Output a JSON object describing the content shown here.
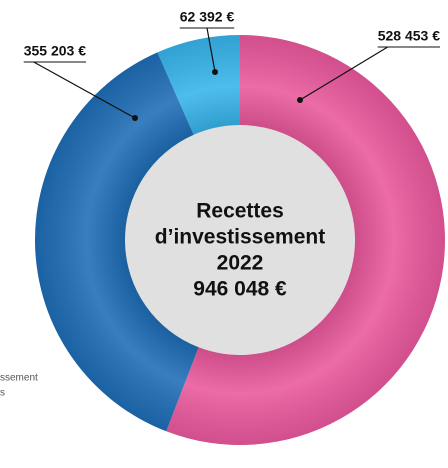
{
  "chart_data": {
    "type": "donut",
    "title": [
      "Recettes",
      "d’investissement",
      "2022"
    ],
    "total": {
      "value": 946048,
      "label": "946 048 €"
    },
    "categories": [
      null,
      null,
      null
    ],
    "values": [
      528453,
      355203,
      62392
    ],
    "value_labels": [
      "528 453 €",
      "355 203 €",
      "62 392 €"
    ],
    "colors": [
      "#e9589c",
      "#1e6db6",
      "#36b4ea"
    ],
    "annotations": [
      "ssement",
      "s"
    ]
  }
}
